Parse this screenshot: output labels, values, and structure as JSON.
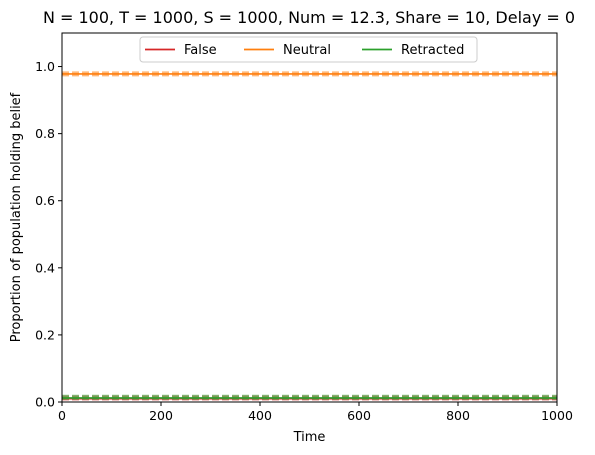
{
  "chart_data": {
    "type": "line",
    "title": "N = 100, T = 1000, S = 1000, Num = 12.3, Share = 10, Delay = 0",
    "xlabel": "Time",
    "ylabel": "Proportion of population holding belief",
    "xlim": [
      0,
      1000
    ],
    "ylim": [
      0,
      1.1
    ],
    "x_ticks": [
      0,
      200,
      400,
      600,
      800,
      1000
    ],
    "x_tick_labels": [
      "0",
      "200",
      "400",
      "600",
      "800",
      "1000"
    ],
    "y_ticks": [
      0.0,
      0.2,
      0.4,
      0.6,
      0.8,
      1.0
    ],
    "y_tick_labels": [
      "0.0",
      "0.2",
      "0.4",
      "0.6",
      "0.8",
      "1.0"
    ],
    "grid": false,
    "legend": {
      "placement": "upper-center",
      "columns": 3
    },
    "series": [
      {
        "name": "False",
        "color": "#d62728",
        "x": [
          0,
          1000
        ],
        "y": [
          0.01,
          0.01
        ],
        "dashed_y": [
          0.012,
          0.012
        ]
      },
      {
        "name": "Neutral",
        "color": "#ff7f0e",
        "x": [
          0,
          1000
        ],
        "y": [
          0.978,
          0.978
        ],
        "dashed_y": [
          0.978,
          0.978
        ]
      },
      {
        "name": "Retracted",
        "color": "#2ca02c",
        "x": [
          0,
          1000
        ],
        "y": [
          0.012,
          0.012
        ],
        "dashed_y": [
          0.014,
          0.014
        ]
      }
    ]
  }
}
